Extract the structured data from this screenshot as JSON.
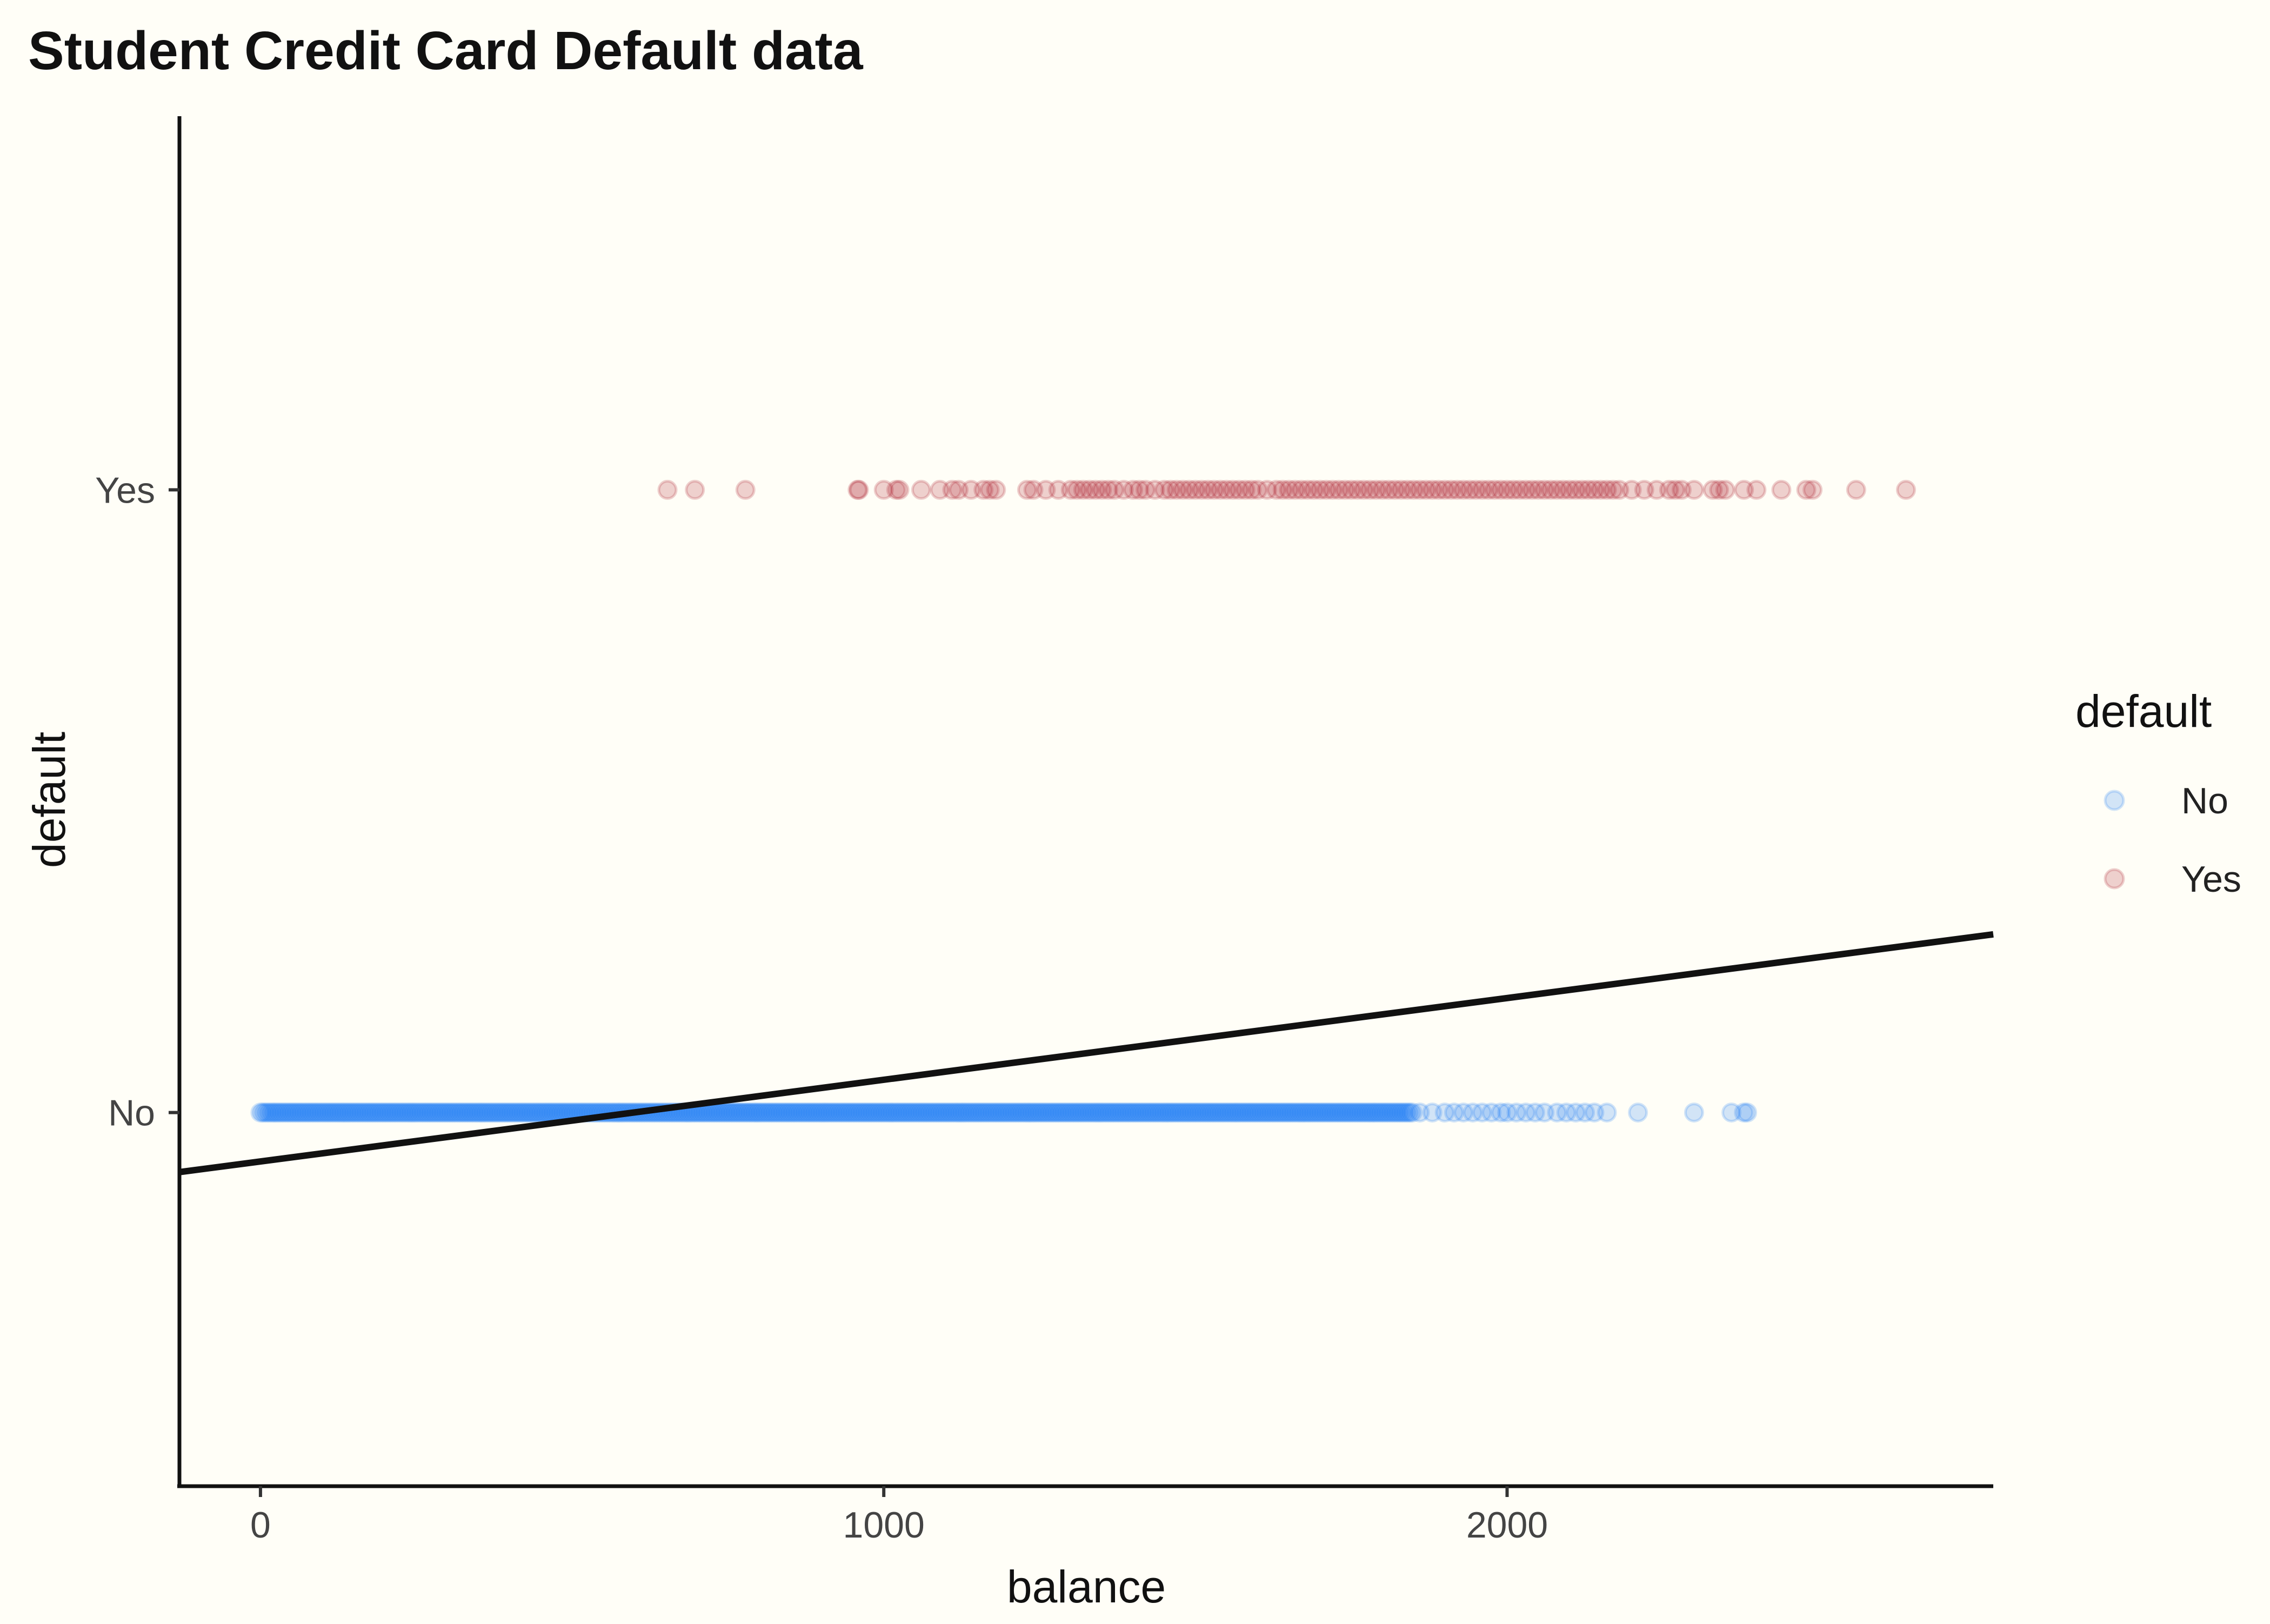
{
  "chart_data": {
    "type": "scatter",
    "title": "Student Credit Card Default data",
    "xlabel": "balance",
    "ylabel": "default",
    "x_ticks": [
      0,
      1000,
      2000
    ],
    "xlim": [
      -130,
      2780
    ],
    "y_categories": [
      "No",
      "Yes"
    ],
    "ylim": [
      -0.6,
      1.6
    ],
    "grid": false,
    "legend": {
      "title": "default",
      "position": "right",
      "entries": [
        {
          "label": "No",
          "color": "#1f7cf5"
        },
        {
          "label": "Yes",
          "color": "#a8192a"
        }
      ]
    },
    "series": [
      {
        "name": "No",
        "y": 0,
        "color": "#1f7cf5",
        "opacity": 0.2,
        "x_dense_range": [
          0,
          1850
        ],
        "x_sparse": [
          1860,
          1880,
          1900,
          1915,
          1930,
          1945,
          1960,
          1975,
          1990,
          2000,
          2015,
          2030,
          2045,
          2060,
          2080,
          2095,
          2110,
          2125,
          2140,
          2160,
          2210,
          2300,
          2360,
          2380,
          2385
        ]
      },
      {
        "name": "Yes",
        "y": 1,
        "color": "#a8192a",
        "opacity": 0.2,
        "x": [
          653,
          697,
          778,
          958,
          960,
          1000,
          1020,
          1025,
          1060,
          1090,
          1110,
          1120,
          1140,
          1160,
          1170,
          1180,
          1230,
          1240,
          1260,
          1280,
          1300,
          1310,
          1320,
          1330,
          1340,
          1350,
          1360,
          1370,
          1385,
          1400,
          1410,
          1420,
          1435,
          1450,
          1460,
          1470,
          1480,
          1490,
          1500,
          1510,
          1520,
          1530,
          1540,
          1550,
          1560,
          1570,
          1580,
          1590,
          1600,
          1615,
          1630,
          1640,
          1650,
          1660,
          1670,
          1680,
          1690,
          1700,
          1710,
          1720,
          1730,
          1740,
          1750,
          1760,
          1770,
          1780,
          1790,
          1800,
          1810,
          1820,
          1830,
          1840,
          1850,
          1860,
          1870,
          1880,
          1890,
          1900,
          1910,
          1920,
          1930,
          1940,
          1950,
          1960,
          1970,
          1980,
          1990,
          2000,
          2010,
          2020,
          2030,
          2040,
          2050,
          2060,
          2070,
          2080,
          2090,
          2100,
          2110,
          2120,
          2130,
          2140,
          2150,
          2160,
          2170,
          2180,
          2200,
          2220,
          2240,
          2260,
          2270,
          2280,
          2300,
          2330,
          2340,
          2350,
          2380,
          2400,
          2440,
          2480,
          2490,
          2560,
          2640
        ]
      }
    ],
    "fit_line": {
      "color": "#111111",
      "points": [
        [
          -130,
          -0.0956
        ],
        [
          2780,
          0.2862
        ]
      ]
    }
  }
}
